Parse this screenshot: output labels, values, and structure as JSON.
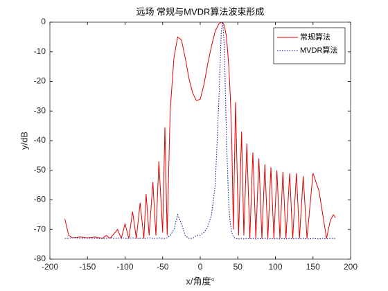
{
  "chart_data": {
    "type": "line",
    "title": "远场 常规与MVDR算法波束形成",
    "x_label": "x/角度°",
    "y_label": "y/dB",
    "x": [
      -180,
      -175,
      -170,
      -160,
      -150,
      -140,
      -130,
      -125,
      -120,
      -115,
      -110,
      -105,
      -100,
      -95,
      -90,
      -85,
      -80,
      -75,
      -72,
      -68,
      -63,
      -59,
      -55,
      -50,
      -47,
      -44,
      -40,
      -35,
      -30,
      -25,
      -20,
      -15,
      -10,
      -5,
      0,
      5,
      10,
      15,
      20,
      25,
      28,
      30,
      32,
      35,
      38,
      40,
      42,
      44,
      47,
      51,
      55,
      58,
      62,
      66,
      70,
      74,
      78,
      82,
      86,
      90,
      94,
      98,
      102,
      106,
      110,
      114,
      119,
      123,
      128,
      132,
      137,
      142,
      150,
      158,
      163,
      168,
      173,
      177,
      180
    ],
    "series": [
      {
        "name": "常规算法",
        "color": "#e00000",
        "dash": "solid",
        "values": [
          -66.5,
          -72,
          -72.8,
          -72.5,
          -72.8,
          -72.5,
          -73,
          -72,
          -73,
          -71.5,
          -70,
          -73,
          -68,
          -73,
          -64,
          -73,
          -61,
          -73,
          -58,
          -72,
          -54,
          -72,
          -47,
          -71,
          -35.5,
          -72,
          -30,
          -12,
          -5,
          -6,
          -12,
          -19,
          -24,
          -26.5,
          -26,
          -21,
          -14,
          -8,
          -3,
          -0.5,
          0,
          -0.2,
          -1,
          -5,
          -15,
          -25,
          -40,
          -70,
          -27,
          -72,
          -37,
          -72,
          -41,
          -73,
          -44,
          -73,
          -46,
          -73,
          -48,
          -73,
          -49,
          -73,
          -50,
          -73,
          -50.5,
          -73,
          -51,
          -73,
          -51,
          -73,
          -52,
          -73,
          -51,
          -57,
          -65,
          -73,
          -67,
          -65,
          -66
        ]
      },
      {
        "name": "MVDR算法",
        "color": "#00008b",
        "dash": "dotted",
        "values": [
          -73,
          -73,
          -72.8,
          -73,
          -72.9,
          -73,
          -73,
          -73,
          -72.8,
          -73,
          -73,
          -72.8,
          -73,
          -73,
          -72.9,
          -73,
          -73,
          -73,
          -73,
          -72.8,
          -73,
          -73,
          -72.9,
          -73,
          -73,
          -72.8,
          -72,
          -70,
          -65,
          -68,
          -72,
          -73,
          -73,
          -72,
          -72,
          -71,
          -69,
          -65,
          -55,
          -25,
          -3,
          0,
          -8,
          -40,
          -62,
          -68,
          -71,
          -72.5,
          -73,
          -73.2,
          -73,
          -73.2,
          -73,
          -73.2,
          -73,
          -73.2,
          -73,
          -73.2,
          -73,
          -73.2,
          -73,
          -73.2,
          -73,
          -73.2,
          -73,
          -73.2,
          -73,
          -73.2,
          -73,
          -73.2,
          -73,
          -73.2,
          -73,
          -73.2,
          -73,
          -73.2,
          -73,
          -73,
          -73
        ]
      }
    ],
    "xlim": [
      -200,
      200
    ],
    "xticks": [
      -200,
      -150,
      -100,
      -50,
      0,
      50,
      100,
      150,
      200
    ],
    "ylim": [
      -80,
      0
    ],
    "yticks": [
      -80,
      -70,
      -60,
      -50,
      -40,
      -30,
      -20,
      -10,
      0
    ],
    "legend": "northeast"
  }
}
